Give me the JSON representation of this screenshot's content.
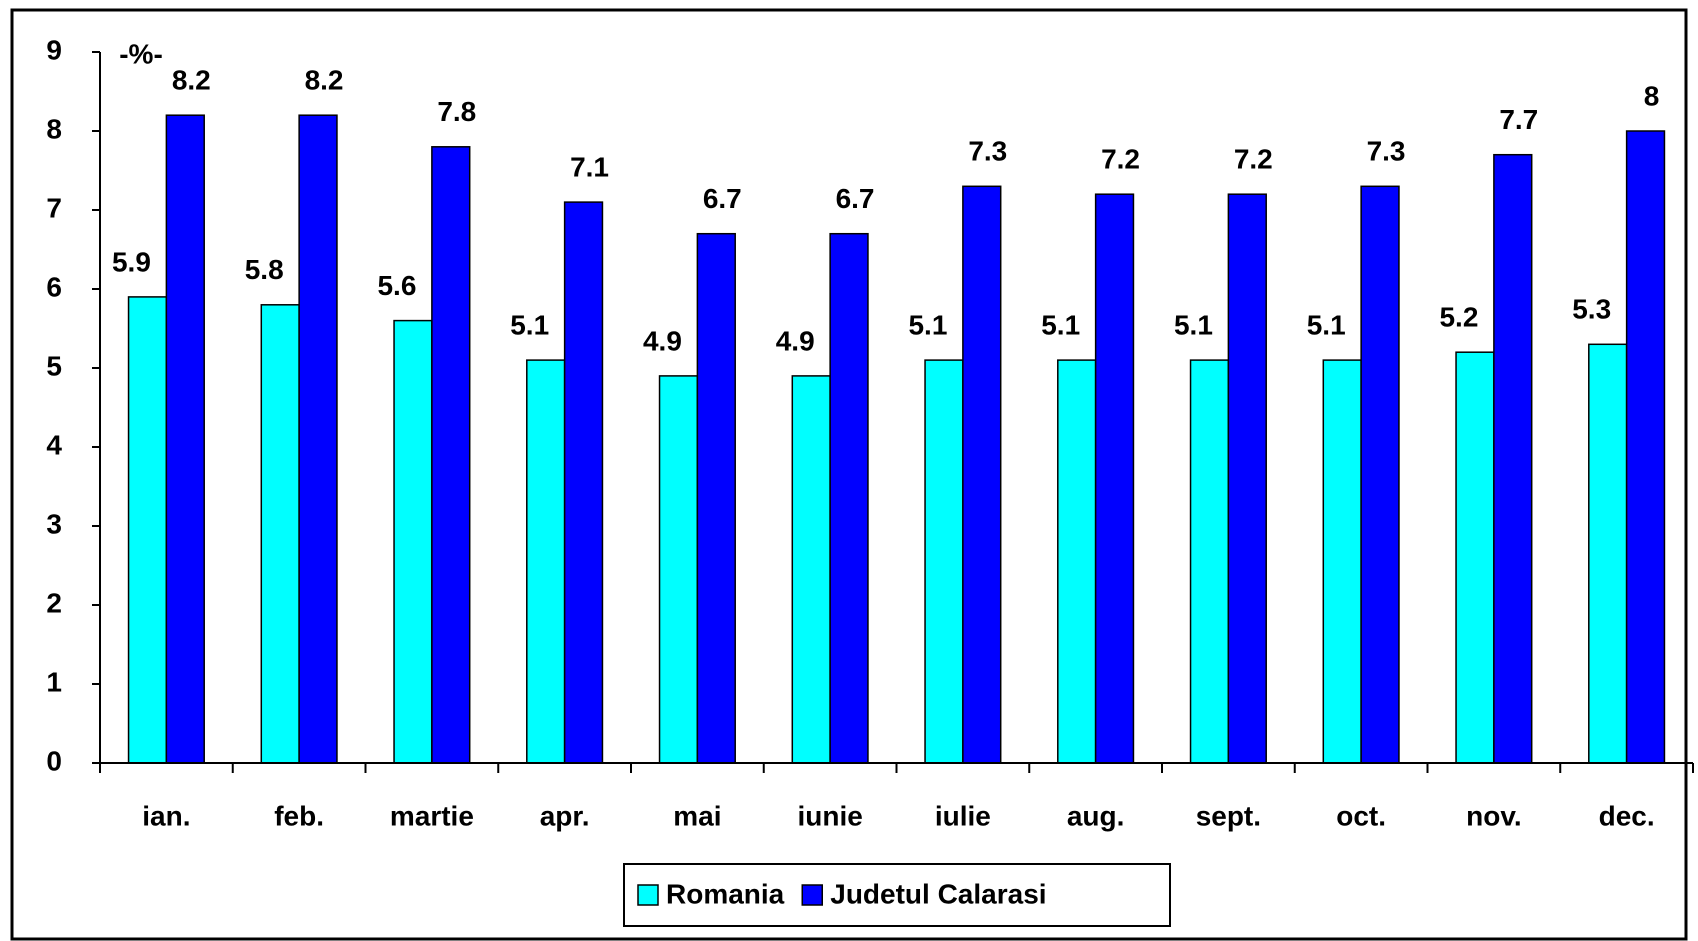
{
  "chart_data": {
    "type": "bar",
    "annotation": "-%-",
    "categories": [
      "ian.",
      "feb.",
      "martie",
      "apr.",
      "mai",
      "iunie",
      "iulie",
      "aug.",
      "sept.",
      "oct.",
      "nov.",
      "dec."
    ],
    "series": [
      {
        "name": "Romania",
        "color": "#00ffff",
        "values": [
          5.9,
          5.8,
          5.6,
          5.1,
          4.9,
          4.9,
          5.1,
          5.1,
          5.1,
          5.1,
          5.2,
          5.3
        ]
      },
      {
        "name": "Judetul Calarasi",
        "color": "#0000ff",
        "values": [
          8.2,
          8.2,
          7.8,
          7.1,
          6.7,
          6.7,
          7.3,
          7.2,
          7.2,
          7.3,
          7.7,
          8
        ]
      }
    ],
    "ylim": [
      0,
      9
    ],
    "yticks": [
      0,
      1,
      2,
      3,
      4,
      5,
      6,
      7,
      8,
      9
    ],
    "legend": "bottom",
    "grid": false
  }
}
